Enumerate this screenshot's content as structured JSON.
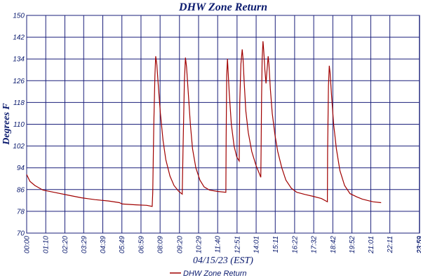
{
  "chart_data": {
    "type": "line",
    "title": "DHW Zone Return",
    "xlabel": "04/15/23 (EST)",
    "ylabel": "Degrees F",
    "ylim": [
      70,
      150
    ],
    "yticks": [
      70,
      78,
      86,
      94,
      102,
      110,
      118,
      126,
      134,
      142,
      150
    ],
    "xlim": [
      0,
      1440
    ],
    "grid": true,
    "legend_position": "bottom-center",
    "xticks": [
      {
        "t": 0,
        "label": "00:00"
      },
      {
        "t": 70,
        "label": "01:10"
      },
      {
        "t": 140,
        "label": "02:20"
      },
      {
        "t": 209,
        "label": "03:29"
      },
      {
        "t": 279,
        "label": "04:39"
      },
      {
        "t": 349,
        "label": "05:49"
      },
      {
        "t": 419,
        "label": "06:59"
      },
      {
        "t": 489,
        "label": "08:09"
      },
      {
        "t": 560,
        "label": "09:20"
      },
      {
        "t": 630,
        "label": "10:29"
      },
      {
        "t": 700,
        "label": "11:40"
      },
      {
        "t": 771,
        "label": "12:51"
      },
      {
        "t": 841,
        "label": "14:01"
      },
      {
        "t": 911,
        "label": "15:11"
      },
      {
        "t": 982,
        "label": "16:22"
      },
      {
        "t": 1052,
        "label": "17:32"
      },
      {
        "t": 1122,
        "label": "18:42"
      },
      {
        "t": 1192,
        "label": "19:52"
      },
      {
        "t": 1261,
        "label": "21:01"
      },
      {
        "t": 1331,
        "label": "22:11"
      },
      {
        "t": 1439,
        "label": "23:59"
      },
      {
        "t": 1440,
        "label": "23:59"
      }
    ],
    "series": [
      {
        "name": "DHW Zone Return",
        "color": "#a00000",
        "points": [
          [
            0,
            91.5
          ],
          [
            12,
            89
          ],
          [
            30,
            87.5
          ],
          [
            60,
            85.8
          ],
          [
            100,
            85
          ],
          [
            150,
            84
          ],
          [
            200,
            83
          ],
          [
            250,
            82.3
          ],
          [
            300,
            81.8
          ],
          [
            340,
            81.2
          ],
          [
            350,
            80.7
          ],
          [
            400,
            80.4
          ],
          [
            440,
            80.2
          ],
          [
            460,
            79.8
          ],
          [
            462,
            85
          ],
          [
            466,
            110
          ],
          [
            470,
            128
          ],
          [
            473,
            135
          ],
          [
            477,
            132
          ],
          [
            482,
            125
          ],
          [
            490,
            114
          ],
          [
            500,
            104
          ],
          [
            510,
            97
          ],
          [
            525,
            91
          ],
          [
            540,
            87.5
          ],
          [
            556,
            85.5
          ],
          [
            570,
            84.3
          ],
          [
            573,
            100
          ],
          [
            578,
            126
          ],
          [
            582,
            134.5
          ],
          [
            586,
            131
          ],
          [
            592,
            122
          ],
          [
            600,
            110
          ],
          [
            608,
            101
          ],
          [
            620,
            94
          ],
          [
            635,
            89.5
          ],
          [
            650,
            87
          ],
          [
            670,
            85.8
          ],
          [
            700,
            85.3
          ],
          [
            730,
            85
          ],
          [
            731,
            105
          ],
          [
            733,
            128
          ],
          [
            736,
            134
          ],
          [
            738,
            130
          ],
          [
            742,
            122
          ],
          [
            750,
            110
          ],
          [
            760,
            102
          ],
          [
            770,
            98
          ],
          [
            779,
            96.5
          ],
          [
            781,
            118
          ],
          [
            785,
            132
          ],
          [
            790,
            137.5
          ],
          [
            793,
            134
          ],
          [
            797,
            126
          ],
          [
            803,
            115
          ],
          [
            812,
            107
          ],
          [
            825,
            100
          ],
          [
            840,
            95
          ],
          [
            850,
            92.5
          ],
          [
            858,
            90.5
          ],
          [
            859,
            100
          ],
          [
            861,
            120
          ],
          [
            863,
            134
          ],
          [
            866,
            140.5
          ],
          [
            869,
            137
          ],
          [
            873,
            130
          ],
          [
            877,
            125
          ],
          [
            881,
            130
          ],
          [
            885,
            135
          ],
          [
            888,
            132
          ],
          [
            893,
            123
          ],
          [
            900,
            114
          ],
          [
            910,
            106
          ],
          [
            920,
            100
          ],
          [
            935,
            94
          ],
          [
            950,
            89.5
          ],
          [
            970,
            86.5
          ],
          [
            990,
            85
          ],
          [
            1020,
            84.2
          ],
          [
            1050,
            83.5
          ],
          [
            1080,
            82.7
          ],
          [
            1102,
            81.5
          ],
          [
            1103,
            100
          ],
          [
            1106,
            124
          ],
          [
            1109,
            131.5
          ],
          [
            1112,
            129
          ],
          [
            1117,
            121
          ],
          [
            1125,
            110
          ],
          [
            1135,
            101
          ],
          [
            1148,
            93
          ],
          [
            1165,
            87.5
          ],
          [
            1185,
            84.5
          ],
          [
            1210,
            83.3
          ],
          [
            1230,
            82.5
          ],
          [
            1250,
            82
          ],
          [
            1270,
            81.5
          ],
          [
            1299,
            81.2
          ]
        ]
      }
    ]
  }
}
